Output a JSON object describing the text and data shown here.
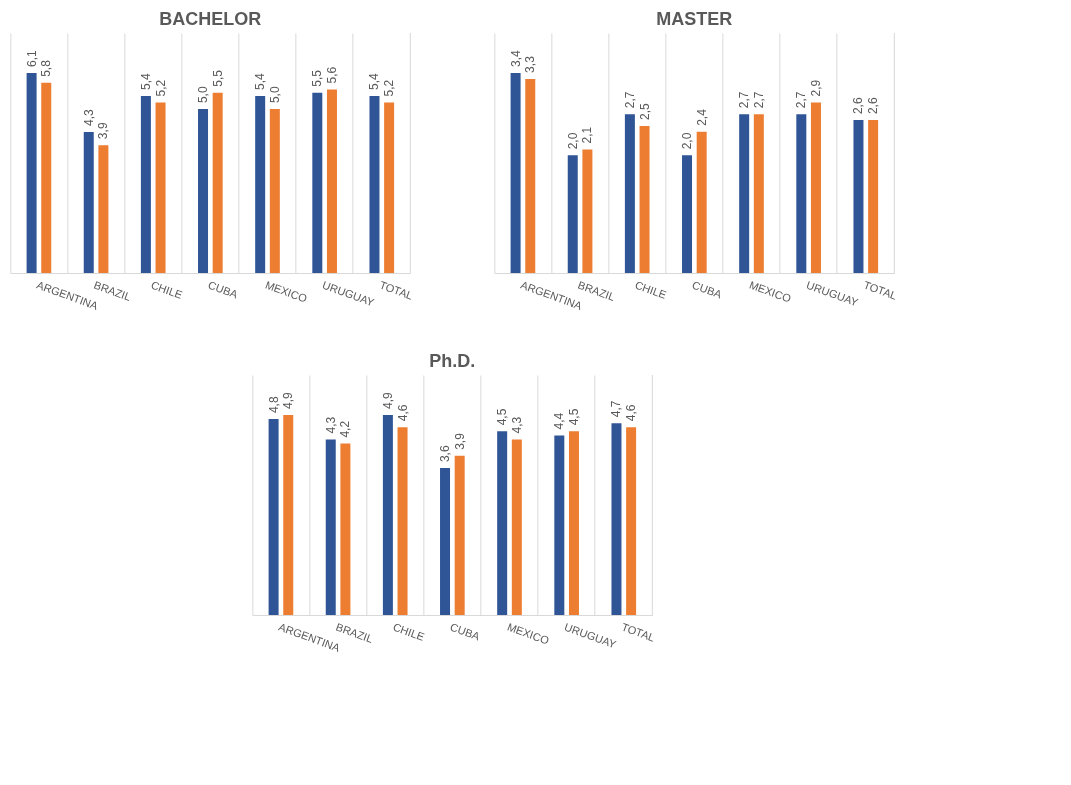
{
  "chart_data": [
    {
      "type": "bar",
      "title": "BACHELOR",
      "categories": [
        "ARGENTINA",
        "BRAZIL",
        "CHILE",
        "CUBA",
        "MEXICO",
        "URUGUAY",
        "TOTAL"
      ],
      "grid": "x",
      "series": [
        {
          "color": "#2f5597",
          "values": [
            6.1,
            4.3,
            5.4,
            5.0,
            5.4,
            5.5,
            5.4
          ],
          "value_labels": [
            "6,1",
            "4,3",
            "5,4",
            "5,0",
            "5,4",
            "5,5",
            "5,4"
          ]
        },
        {
          "color": "#ed7d31",
          "values": [
            5.8,
            3.9,
            5.2,
            5.5,
            5.0,
            5.6,
            5.2
          ],
          "value_labels": [
            "5,8",
            "3,9",
            "5,2",
            "5,5",
            "5,0",
            "5,6",
            "5,2"
          ]
        }
      ]
    },
    {
      "type": "bar",
      "title": "MASTER",
      "categories": [
        "ARGENTINA",
        "BRAZIL",
        "CHILE",
        "CUBA",
        "MEXICO",
        "URUGUAY",
        "TOTAL"
      ],
      "grid": "x",
      "series": [
        {
          "color": "#2f5597",
          "values": [
            3.4,
            2.0,
            2.7,
            2.0,
            2.7,
            2.7,
            2.6
          ],
          "value_labels": [
            "3,4",
            "2,0",
            "2,7",
            "2,0",
            "2,7",
            "2,7",
            "2,6"
          ]
        },
        {
          "color": "#ed7d31",
          "values": [
            3.3,
            2.1,
            2.5,
            2.4,
            2.7,
            2.9,
            2.6
          ],
          "value_labels": [
            "3,3",
            "2,1",
            "2,5",
            "2,4",
            "2,7",
            "2,9",
            "2,6"
          ]
        }
      ]
    },
    {
      "type": "bar",
      "title": "Ph.D.",
      "categories": [
        "ARGENTINA",
        "BRAZIL",
        "CHILE",
        "CUBA",
        "MEXICO",
        "URUGUAY",
        "TOTAL"
      ],
      "grid": "x",
      "series": [
        {
          "color": "#2f5597",
          "values": [
            4.8,
            4.3,
            4.9,
            3.6,
            4.5,
            4.4,
            4.7
          ],
          "value_labels": [
            "4,8",
            "4,3",
            "4,9",
            "3,6",
            "4,5",
            "4,4",
            "4,7"
          ]
        },
        {
          "color": "#ed7d31",
          "values": [
            4.9,
            4.2,
            4.6,
            3.9,
            4.3,
            4.5,
            4.6
          ],
          "value_labels": [
            "4,9",
            "4,2",
            "4,6",
            "3,9",
            "4,3",
            "4,5",
            "4,6"
          ]
        }
      ]
    }
  ]
}
